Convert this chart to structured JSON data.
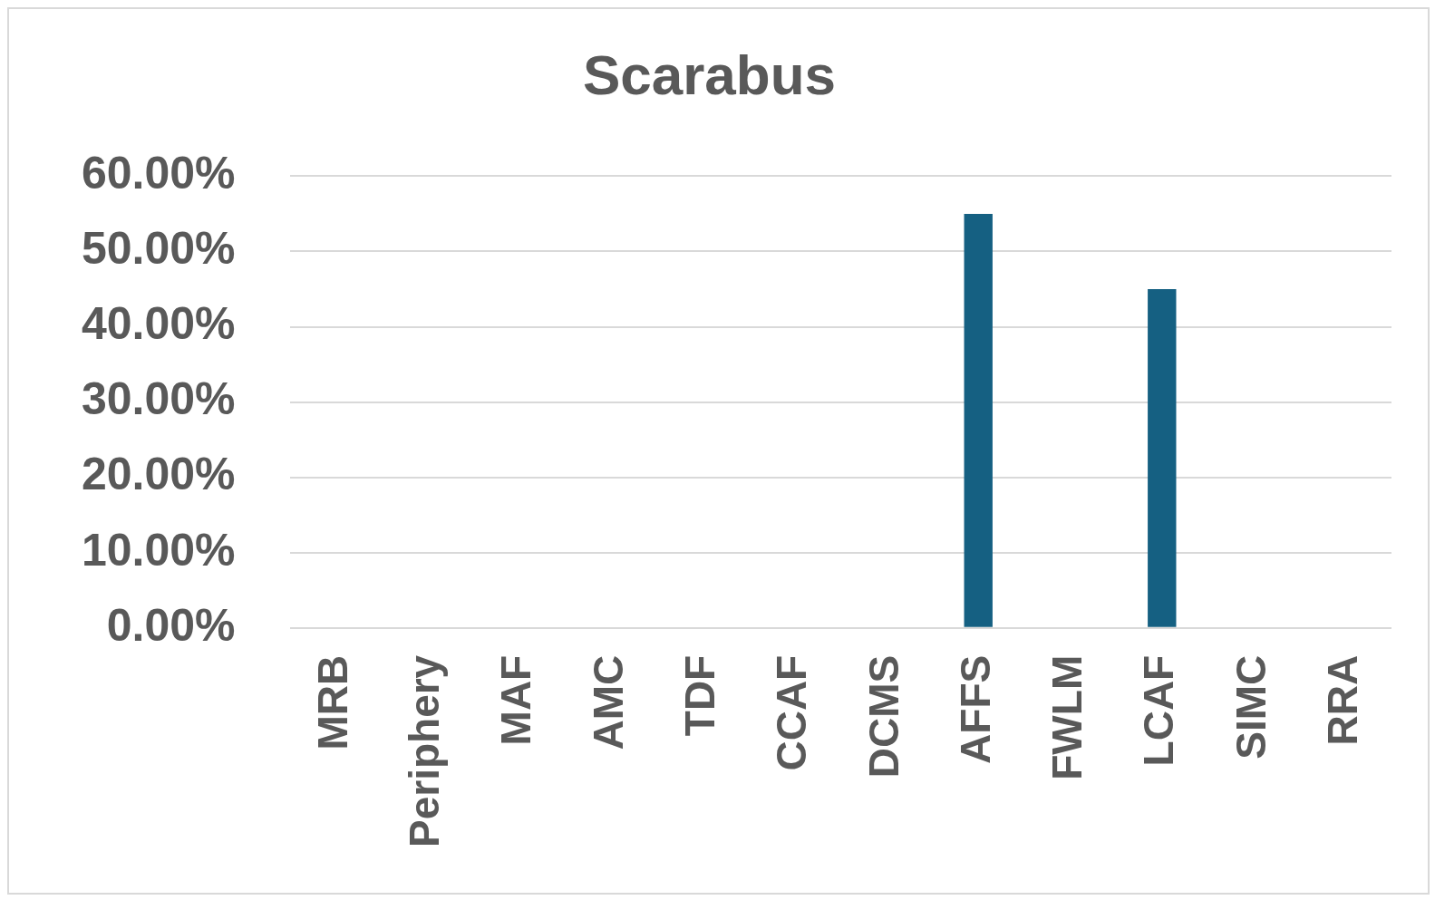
{
  "chart_data": {
    "type": "bar",
    "title": "Scarabus",
    "categories": [
      "MRB",
      "Periphery",
      "MAF",
      "AMC",
      "TDF",
      "CCAF",
      "DCMS",
      "AFFS",
      "FWLM",
      "LCAF",
      "SIMC",
      "RRA"
    ],
    "values": [
      0,
      0,
      0,
      0,
      0,
      0,
      0,
      55,
      0,
      45,
      0,
      0
    ],
    "color": "#156082",
    "ylim": [
      0,
      60
    ],
    "yticks": [
      {
        "value": 0,
        "label": "0.00%"
      },
      {
        "value": 10,
        "label": "10.00%"
      },
      {
        "value": 20,
        "label": "20.00%"
      },
      {
        "value": 30,
        "label": "30.00%"
      },
      {
        "value": 40,
        "label": "40.00%"
      },
      {
        "value": 50,
        "label": "50.00%"
      },
      {
        "value": 60,
        "label": "60.00%"
      }
    ],
    "grid": "y",
    "legend": false
  }
}
